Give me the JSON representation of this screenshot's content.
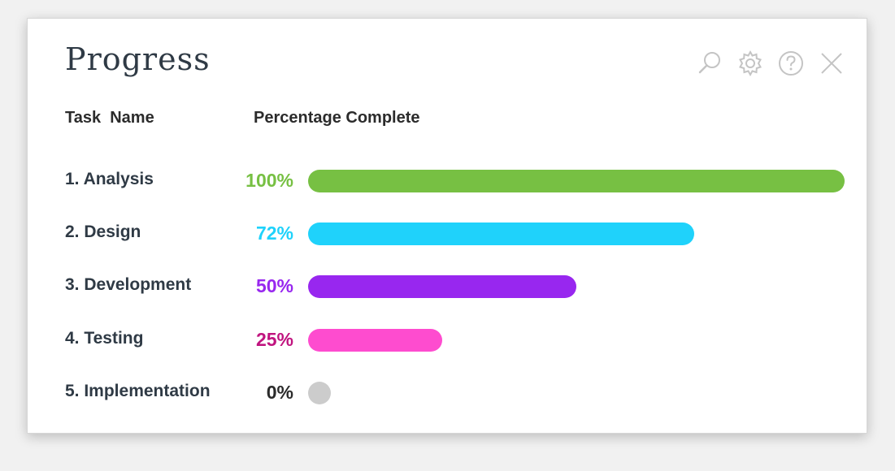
{
  "title": "Progress",
  "toolbar": {
    "icons": [
      "search-icon",
      "gear-icon",
      "help-icon",
      "close-icon"
    ]
  },
  "columns": {
    "task_name": "Task  Name",
    "percentage": "Percentage Complete"
  },
  "tasks": [
    {
      "label": "1. Analysis",
      "percent_text": "100%",
      "percent": 100,
      "bar_color": "#77c043",
      "text_color": "#77c043"
    },
    {
      "label": "2. Design",
      "percent_text": "72%",
      "percent": 72,
      "bar_color": "#1fd2fb",
      "text_color": "#1fd2fb"
    },
    {
      "label": "3. Development",
      "percent_text": "50%",
      "percent": 50,
      "bar_color": "#9827ef",
      "text_color": "#9827ef"
    },
    {
      "label": "4. Testing",
      "percent_text": "25%",
      "percent": 25,
      "bar_color": "#fe4ccf",
      "text_color": "#c0147f"
    },
    {
      "label": "5. Implementation",
      "percent_text": "0%",
      "percent": 0,
      "bar_color": "#cccccc",
      "text_color": "#2b2b2b"
    }
  ]
}
